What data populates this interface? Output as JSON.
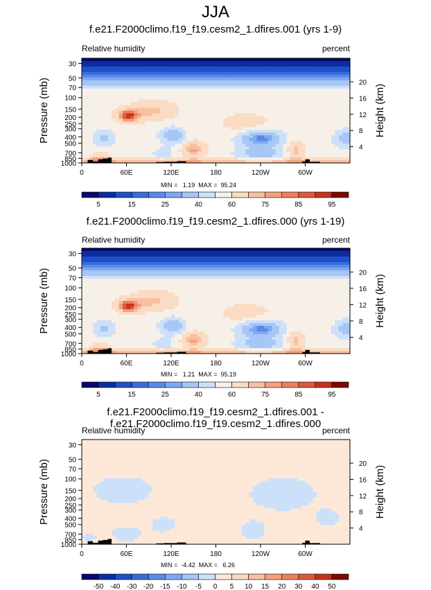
{
  "title": "JJA",
  "panels": [
    {
      "id": "p1",
      "title": "f.e21.F2000climo.f19_f19.cesm2_1.dfires.001 (yrs 1-9)",
      "left_label": "Relative humidity",
      "right_label": "percent",
      "min_label": "MIN =   1.19  MAX =  95.24",
      "colorbar_ticks": [
        "5",
        "15",
        "25",
        "40",
        "60",
        "75",
        "85",
        "95"
      ]
    },
    {
      "id": "p2",
      "title": "f.e21.F2000climo.f19_f19.cesm2_1.dfires.000 (yrs 1-19)",
      "left_label": "Relative humidity",
      "right_label": "percent",
      "min_label": "MIN =   1.21  MAX =  95.19",
      "colorbar_ticks": [
        "5",
        "15",
        "25",
        "40",
        "60",
        "75",
        "85",
        "95"
      ]
    },
    {
      "id": "p3",
      "title": "f.e21.F2000climo.f19_f19.cesm2_1.dfires.001 - f.e21.F2000climo.f19_f19.cesm2_1.dfires.000",
      "left_label": "Relative humidity",
      "right_label": "percent",
      "min_label": "MIN =  -4.42  MAX =   6.26",
      "colorbar_ticks": [
        "-50",
        "-40",
        "-30",
        "-20",
        "-15",
        "-10",
        "-5",
        "0",
        "5",
        "10",
        "15",
        "20",
        "30",
        "40",
        "50"
      ]
    }
  ],
  "chart_data": [
    {
      "type": "heatmap",
      "title": "f.e21.F2000climo.f19_f19.cesm2_1.dfires.001 (yrs 1-9)",
      "ylabel": "Pressure (mb)",
      "y2label": "Height (km)",
      "x_ticks": [
        "0",
        "60E",
        "120E",
        "180",
        "120W",
        "60W"
      ],
      "x_tick_values": [
        0,
        60,
        120,
        180,
        240,
        300
      ],
      "xlim": [
        0,
        360
      ],
      "y_ticks": [
        "30",
        "50",
        "70",
        "100",
        "150",
        "200",
        "250",
        "300",
        "400",
        "500",
        "700",
        "850",
        "1000"
      ],
      "y_tick_values": [
        30,
        50,
        70,
        100,
        150,
        200,
        250,
        300,
        400,
        500,
        700,
        850,
        1000
      ],
      "ylim": [
        1000,
        25
      ],
      "y_scale": "log",
      "y2_ticks": [
        "4",
        "8",
        "12",
        "16",
        "20"
      ],
      "y2_tick_values": [
        4,
        8,
        12,
        16,
        20
      ],
      "min": 1.19,
      "max": 95.24,
      "colorbar_levels": [
        5,
        10,
        15,
        20,
        25,
        30,
        40,
        50,
        60,
        70,
        75,
        80,
        85,
        90,
        95
      ],
      "colorbar_labels": [
        "5",
        "15",
        "25",
        "40",
        "60",
        "75",
        "85",
        "95"
      ],
      "colors": [
        "#08086e",
        "#0a2ea0",
        "#1e50c8",
        "#3c6cdc",
        "#5a8ae8",
        "#80a8f0",
        "#a6c6f6",
        "#cce0fa",
        "#f6f0e8",
        "#fadcc4",
        "#f8c0a0",
        "#f4a07c",
        "#ec805c",
        "#dc5a3c",
        "#c4321e",
        "#7a0a00"
      ]
    },
    {
      "type": "heatmap",
      "title": "f.e21.F2000climo.f19_f19.cesm2_1.dfires.000 (yrs 1-19)",
      "ylabel": "Pressure (mb)",
      "y2label": "Height (km)",
      "x_ticks": [
        "0",
        "60E",
        "120E",
        "180",
        "120W",
        "60W"
      ],
      "x_tick_values": [
        0,
        60,
        120,
        180,
        240,
        300
      ],
      "xlim": [
        0,
        360
      ],
      "y_ticks": [
        "30",
        "50",
        "70",
        "100",
        "150",
        "200",
        "250",
        "300",
        "400",
        "500",
        "700",
        "850",
        "1000"
      ],
      "y_tick_values": [
        30,
        50,
        70,
        100,
        150,
        200,
        250,
        300,
        400,
        500,
        700,
        850,
        1000
      ],
      "ylim": [
        1000,
        25
      ],
      "y_scale": "log",
      "y2_ticks": [
        "4",
        "8",
        "12",
        "16",
        "20"
      ],
      "y2_tick_values": [
        4,
        8,
        12,
        16,
        20
      ],
      "min": 1.21,
      "max": 95.19,
      "colorbar_levels": [
        5,
        10,
        15,
        20,
        25,
        30,
        40,
        50,
        60,
        70,
        75,
        80,
        85,
        90,
        95
      ],
      "colorbar_labels": [
        "5",
        "15",
        "25",
        "40",
        "60",
        "75",
        "85",
        "95"
      ],
      "colors": [
        "#08086e",
        "#0a2ea0",
        "#1e50c8",
        "#3c6cdc",
        "#5a8ae8",
        "#80a8f0",
        "#a6c6f6",
        "#cce0fa",
        "#f6f0e8",
        "#fadcc4",
        "#f8c0a0",
        "#f4a07c",
        "#ec805c",
        "#dc5a3c",
        "#c4321e",
        "#7a0a00"
      ]
    },
    {
      "type": "heatmap",
      "title": "f.e21.F2000climo.f19_f19.cesm2_1.dfires.001 - f.e21.F2000climo.f19_f19.cesm2_1.dfires.000",
      "ylabel": "Pressure (mb)",
      "y2label": "Height (km)",
      "x_ticks": [
        "0",
        "60E",
        "120E",
        "180",
        "120W",
        "60W"
      ],
      "x_tick_values": [
        0,
        60,
        120,
        180,
        240,
        300
      ],
      "xlim": [
        0,
        360
      ],
      "y_ticks": [
        "30",
        "50",
        "70",
        "100",
        "150",
        "200",
        "250",
        "300",
        "400",
        "500",
        "700",
        "850",
        "1000"
      ],
      "y_tick_values": [
        30,
        50,
        70,
        100,
        150,
        200,
        250,
        300,
        400,
        500,
        700,
        850,
        1000
      ],
      "ylim": [
        1000,
        25
      ],
      "y_scale": "log",
      "y2_ticks": [
        "4",
        "8",
        "12",
        "16",
        "20"
      ],
      "y2_tick_values": [
        4,
        8,
        12,
        16,
        20
      ],
      "min": -4.42,
      "max": 6.26,
      "colorbar_levels": [
        -50,
        -40,
        -30,
        -20,
        -15,
        -10,
        -5,
        0,
        5,
        10,
        15,
        20,
        30,
        40,
        50
      ],
      "colorbar_labels": [
        "-50",
        "-40",
        "-30",
        "-20",
        "-15",
        "-10",
        "-5",
        "0",
        "5",
        "10",
        "15",
        "20",
        "30",
        "40",
        "50"
      ],
      "colors": [
        "#08086e",
        "#0a2ea0",
        "#1e50c8",
        "#3c6cdc",
        "#5a8ae8",
        "#80a8f0",
        "#a6c6f6",
        "#cce0fa",
        "#fde8d8",
        "#fadcc4",
        "#f8c0a0",
        "#f4a07c",
        "#ec805c",
        "#dc5a3c",
        "#c4321e",
        "#7a0a00"
      ]
    }
  ]
}
